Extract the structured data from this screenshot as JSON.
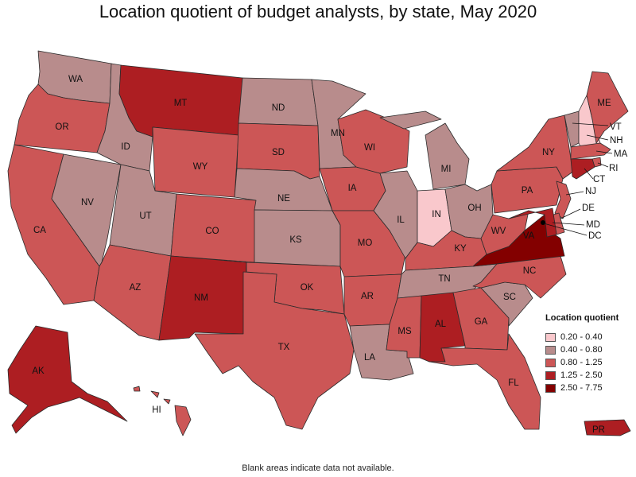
{
  "title": "Location quotient of budget analysts, by state, May 2020",
  "footnote": "Blank areas indicate data not available.",
  "legend": {
    "title": "Location quotient",
    "items": [
      {
        "label": "0.20 - 0.40",
        "color": "#f9c8cc"
      },
      {
        "label": "0.40 - 0.80",
        "color": "#b88c8c"
      },
      {
        "label": "0.80 - 1.25",
        "color": "#cc5656"
      },
      {
        "label": "1.25 - 2.50",
        "color": "#ad1e22"
      },
      {
        "label": "2.50 - 7.75",
        "color": "#830000"
      }
    ]
  },
  "chart_data": {
    "type": "choropleth",
    "title": "Location quotient of budget analysts, by state, May 2020",
    "classes": [
      "0.20 - 0.40",
      "0.40 - 0.80",
      "0.80 - 1.25",
      "1.25 - 2.50",
      "2.50 - 7.75"
    ],
    "states": {
      "WA": "0.40 - 0.80",
      "OR": "0.80 - 1.25",
      "CA": "0.80 - 1.25",
      "NV": "0.40 - 0.80",
      "ID": "0.40 - 0.80",
      "MT": "1.25 - 2.50",
      "WY": "0.80 - 1.25",
      "UT": "0.40 - 0.80",
      "AZ": "0.80 - 1.25",
      "CO": "0.80 - 1.25",
      "NM": "1.25 - 2.50",
      "ND": "0.40 - 0.80",
      "SD": "0.80 - 1.25",
      "NE": "0.40 - 0.80",
      "KS": "0.40 - 0.80",
      "OK": "0.80 - 1.25",
      "TX": "0.80 - 1.25",
      "MN": "0.40 - 0.80",
      "IA": "0.80 - 1.25",
      "MO": "0.80 - 1.25",
      "AR": "0.80 - 1.25",
      "LA": "0.40 - 0.80",
      "WI": "0.80 - 1.25",
      "IL": "0.40 - 0.80",
      "MI": "0.40 - 0.80",
      "IN": "0.20 - 0.40",
      "OH": "0.40 - 0.80",
      "KY": "0.80 - 1.25",
      "TN": "0.40 - 0.80",
      "MS": "0.80 - 1.25",
      "AL": "1.25 - 2.50",
      "GA": "0.80 - 1.25",
      "FL": "0.80 - 1.25",
      "SC": "0.40 - 0.80",
      "NC": "0.80 - 1.25",
      "VA": "2.50 - 7.75",
      "WV": "0.80 - 1.25",
      "PA": "0.80 - 1.25",
      "NY": "0.80 - 1.25",
      "VT": "0.40 - 0.80",
      "NH": "0.20 - 0.40",
      "ME": "0.80 - 1.25",
      "MA": "0.80 - 1.25",
      "RI": "0.80 - 1.25",
      "CT": "1.25 - 2.50",
      "NJ": "0.80 - 1.25",
      "DE": "0.80 - 1.25",
      "MD": "1.25 - 2.50",
      "DC": "2.50 - 7.75",
      "AK": "1.25 - 2.50",
      "HI": "0.80 - 1.25",
      "PR": "1.25 - 2.50"
    }
  },
  "labels": {
    "WA": "WA",
    "OR": "OR",
    "CA": "CA",
    "NV": "NV",
    "ID": "ID",
    "MT": "MT",
    "WY": "WY",
    "UT": "UT",
    "AZ": "AZ",
    "CO": "CO",
    "NM": "NM",
    "ND": "ND",
    "SD": "SD",
    "NE": "NE",
    "KS": "KS",
    "OK": "OK",
    "TX": "TX",
    "MN": "MN",
    "IA": "IA",
    "MO": "MO",
    "AR": "AR",
    "LA": "LA",
    "WI": "WI",
    "IL": "IL",
    "MI": "MI",
    "IN": "IN",
    "OH": "OH",
    "KY": "KY",
    "TN": "TN",
    "MS": "MS",
    "AL": "AL",
    "GA": "GA",
    "FL": "FL",
    "SC": "SC",
    "NC": "NC",
    "VA": "VA",
    "WV": "WV",
    "PA": "PA",
    "NY": "NY",
    "VT": "VT",
    "NH": "NH",
    "ME": "ME",
    "MA": "MA",
    "RI": "RI",
    "CT": "CT",
    "NJ": "NJ",
    "DE": "DE",
    "MD": "MD",
    "DC": "DC",
    "AK": "AK",
    "HI": "HI",
    "PR": "PR"
  }
}
